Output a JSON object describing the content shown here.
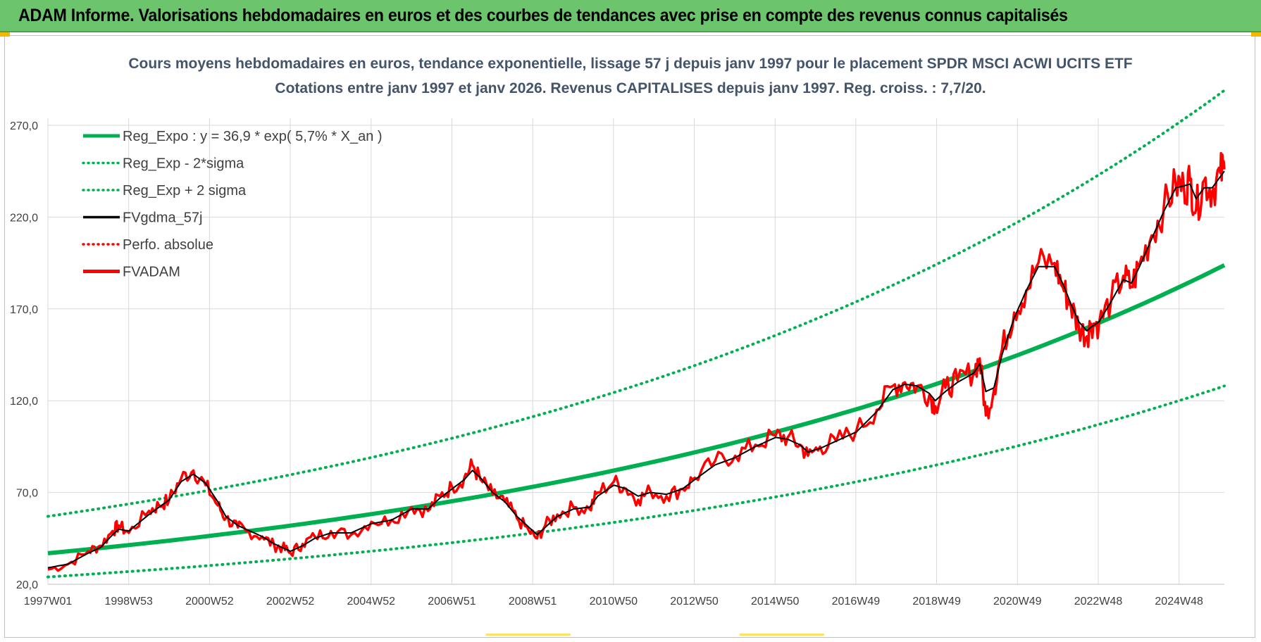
{
  "banner": {
    "title": "ADAM Informe. Valorisations hebdomadaires en euros et des courbes de tendances avec prise en compte des revenus connus capitalisés"
  },
  "colors": {
    "banner": "#6cc46c",
    "reg_expo": "#00b050",
    "sigma_bands": "#00b050",
    "fvgdma": "#000000",
    "perfo": "#ff0000",
    "fvadam": "#ff0000"
  },
  "chart_data": {
    "type": "line",
    "title_line1": "Cours moyens hebdomadaires en euros, tendance exponentielle, lissage 57 j depuis janv 1997  pour le placement SPDR MSCI ACWI UCITS ETF",
    "title_line2": "Cotations entre janv 1997 et janv 2026. Revenus CAPITALISES depuis janv 1997. Reg. croiss. : 7,7/20.",
    "x_tick_labels": [
      "1997W01",
      "1998W53",
      "2000W52",
      "2002W52",
      "2004W52",
      "2006W51",
      "2008W51",
      "2010W50",
      "2012W50",
      "2014W50",
      "2016W49",
      "2018W49",
      "2020W49",
      "2022W48",
      "2024W48"
    ],
    "x_range_years": [
      1997.0,
      2026.1
    ],
    "y_ticks": [
      "20,0",
      "70,0",
      "120,0",
      "170,0",
      "220,0",
      "270,0"
    ],
    "ylim": [
      20,
      270
    ],
    "grid": true,
    "legend_position": "top-left",
    "legend": [
      {
        "label": "Reg_Expo : y = 36,9 * exp( 5,7% *  X_an )",
        "style": "solid-thick",
        "color": "#00b050"
      },
      {
        "label": "Reg_Exp - 2*sigma",
        "style": "dotted",
        "color": "#00b050"
      },
      {
        "label": "Reg_Exp + 2 sigma",
        "style": "dotted",
        "color": "#00b050"
      },
      {
        "label": "FVgdma_57j",
        "style": "solid",
        "color": "#000000"
      },
      {
        "label": "Perfo. absolue",
        "style": "dotted",
        "color": "#ff0000"
      },
      {
        "label": "FVADAM",
        "style": "solid-thick",
        "color": "#ff0000"
      }
    ],
    "regression": {
      "a": 36.9,
      "rate": 0.057,
      "start_year": 1997.0
    },
    "sigma_bands": {
      "upper": [
        [
          1997.0,
          57
        ],
        [
          2026.1,
          289
        ]
      ],
      "lower": [
        [
          1997.0,
          24
        ],
        [
          2026.1,
          128
        ]
      ]
    },
    "series": [
      {
        "name": "FVADAM",
        "x_year": [
          1997.0,
          1997.5,
          1998.0,
          1998.3,
          1998.6,
          1998.75,
          1999.0,
          1999.5,
          1999.75,
          2000.0,
          2000.3,
          2000.6,
          2000.9,
          2001.2,
          2001.4,
          2001.7,
          2001.9,
          2002.3,
          2002.6,
          2002.8,
          2003.0,
          2003.3,
          2003.6,
          2004.0,
          2004.5,
          2005.0,
          2005.5,
          2006.0,
          2006.4,
          2006.7,
          2007.0,
          2007.3,
          2007.5,
          2007.7,
          2008.0,
          2008.3,
          2008.6,
          2008.9,
          2009.1,
          2009.3,
          2009.6,
          2010.0,
          2010.4,
          2010.6,
          2011.0,
          2011.3,
          2011.6,
          2011.9,
          2012.3,
          2012.7,
          2013.0,
          2013.5,
          2014.0,
          2014.5,
          2015.0,
          2015.3,
          2015.6,
          2015.8,
          2016.1,
          2016.5,
          2017.0,
          2017.5,
          2017.9,
          2018.2,
          2018.5,
          2018.8,
          2018.95,
          2019.2,
          2019.5,
          2019.9,
          2020.05,
          2020.2,
          2020.4,
          2020.6,
          2020.9,
          2021.2,
          2021.5,
          2021.9,
          2022.1,
          2022.3,
          2022.5,
          2022.7,
          2022.8,
          2023.0,
          2023.3,
          2023.6,
          2023.8,
          2024.0,
          2024.3,
          2024.6,
          2024.9,
          2025.1,
          2025.25,
          2025.4,
          2025.6,
          2025.8,
          2026.0,
          2026.1
        ],
        "y": [
          28,
          31,
          38,
          41,
          49,
          52,
          48,
          60,
          63,
          66,
          78,
          82,
          74,
          63,
          56,
          51,
          49,
          46,
          41,
          40,
          37,
          42,
          46,
          49,
          47,
          54,
          55,
          62,
          60,
          68,
          73,
          78,
          85,
          77,
          69,
          65,
          56,
          49,
          45,
          52,
          58,
          62,
          61,
          70,
          76,
          72,
          66,
          71,
          68,
          72,
          78,
          87,
          90,
          96,
          101,
          100,
          96,
          90,
          95,
          98,
          104,
          115,
          128,
          130,
          128,
          123,
          117,
          127,
          131,
          136,
          143,
          112,
          126,
          148,
          168,
          180,
          195,
          195,
          182,
          172,
          160,
          155,
          162,
          162,
          175,
          188,
          182,
          194,
          210,
          225,
          238,
          236,
          240,
          224,
          240,
          234,
          244,
          246
        ]
      },
      {
        "name": "FVgdma_57j",
        "x_year": [
          1997.0,
          1997.5,
          1998.0,
          1998.3,
          1998.6,
          1998.75,
          1999.0,
          1999.5,
          1999.75,
          2000.0,
          2000.3,
          2000.6,
          2000.9,
          2001.2,
          2001.4,
          2001.7,
          2001.9,
          2002.3,
          2002.6,
          2002.8,
          2003.0,
          2003.3,
          2003.6,
          2004.0,
          2004.5,
          2005.0,
          2005.5,
          2006.0,
          2006.4,
          2006.7,
          2007.0,
          2007.3,
          2007.5,
          2007.7,
          2008.0,
          2008.3,
          2008.6,
          2008.9,
          2009.1,
          2009.3,
          2009.6,
          2010.0,
          2010.4,
          2010.6,
          2011.0,
          2011.3,
          2011.6,
          2011.9,
          2012.3,
          2012.7,
          2013.0,
          2013.5,
          2014.0,
          2014.5,
          2015.0,
          2015.3,
          2015.6,
          2015.8,
          2016.1,
          2016.5,
          2017.0,
          2017.5,
          2017.9,
          2018.2,
          2018.5,
          2018.8,
          2018.95,
          2019.2,
          2019.5,
          2019.9,
          2020.05,
          2020.2,
          2020.4,
          2020.6,
          2020.9,
          2021.2,
          2021.5,
          2021.9,
          2022.1,
          2022.3,
          2022.5,
          2022.7,
          2022.8,
          2023.0,
          2023.3,
          2023.6,
          2023.8,
          2024.0,
          2024.3,
          2024.6,
          2024.9,
          2025.1,
          2025.25,
          2025.4,
          2025.6,
          2025.8,
          2026.0,
          2026.1
        ],
        "y": [
          29,
          31,
          37,
          40,
          47,
          50,
          49,
          58,
          62,
          66,
          76,
          80,
          75,
          65,
          57,
          52,
          50,
          46,
          42,
          40,
          38,
          41,
          45,
          48,
          48,
          53,
          55,
          61,
          61,
          67,
          72,
          77,
          82,
          78,
          70,
          65,
          57,
          51,
          47,
          51,
          57,
          61,
          62,
          68,
          74,
          72,
          68,
          70,
          69,
          72,
          77,
          85,
          89,
          95,
          100,
          99,
          96,
          92,
          94,
          98,
          103,
          114,
          126,
          129,
          128,
          124,
          120,
          125,
          130,
          135,
          140,
          125,
          127,
          145,
          165,
          180,
          193,
          193,
          184,
          173,
          163,
          158,
          160,
          163,
          174,
          186,
          184,
          193,
          208,
          223,
          236,
          237,
          238,
          230,
          236,
          236,
          242,
          245
        ]
      }
    ]
  }
}
